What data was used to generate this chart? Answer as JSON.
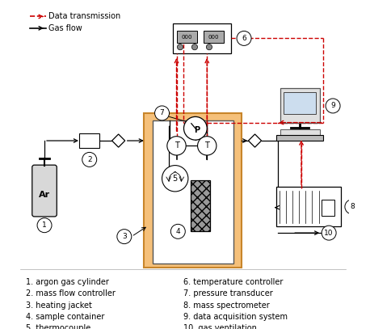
{
  "legend_items": [
    {
      "label": "Data transmission",
      "color": "#cc0000",
      "linestyle": "dashed"
    },
    {
      "label": "Gas flow",
      "color": "#000000",
      "linestyle": "solid"
    }
  ],
  "left_labels": [
    [
      "1.",
      "argon gas cylinder"
    ],
    [
      "2.",
      "mass flow controller"
    ],
    [
      "3.",
      "heating jacket"
    ],
    [
      "4.",
      "sample container"
    ],
    [
      "5.",
      "thermocouple"
    ]
  ],
  "right_labels": [
    [
      "6.",
      "temperature controller"
    ],
    [
      "7.",
      "pressure transducer"
    ],
    [
      "8.",
      "mass spectrometer"
    ],
    [
      "9.",
      "data acquisition system"
    ],
    [
      "10.",
      "gas ventilation"
    ]
  ],
  "bg_color": "#ffffff",
  "heating_jacket_color": "#f5c07a",
  "heating_jacket_edge": "#c8852a"
}
